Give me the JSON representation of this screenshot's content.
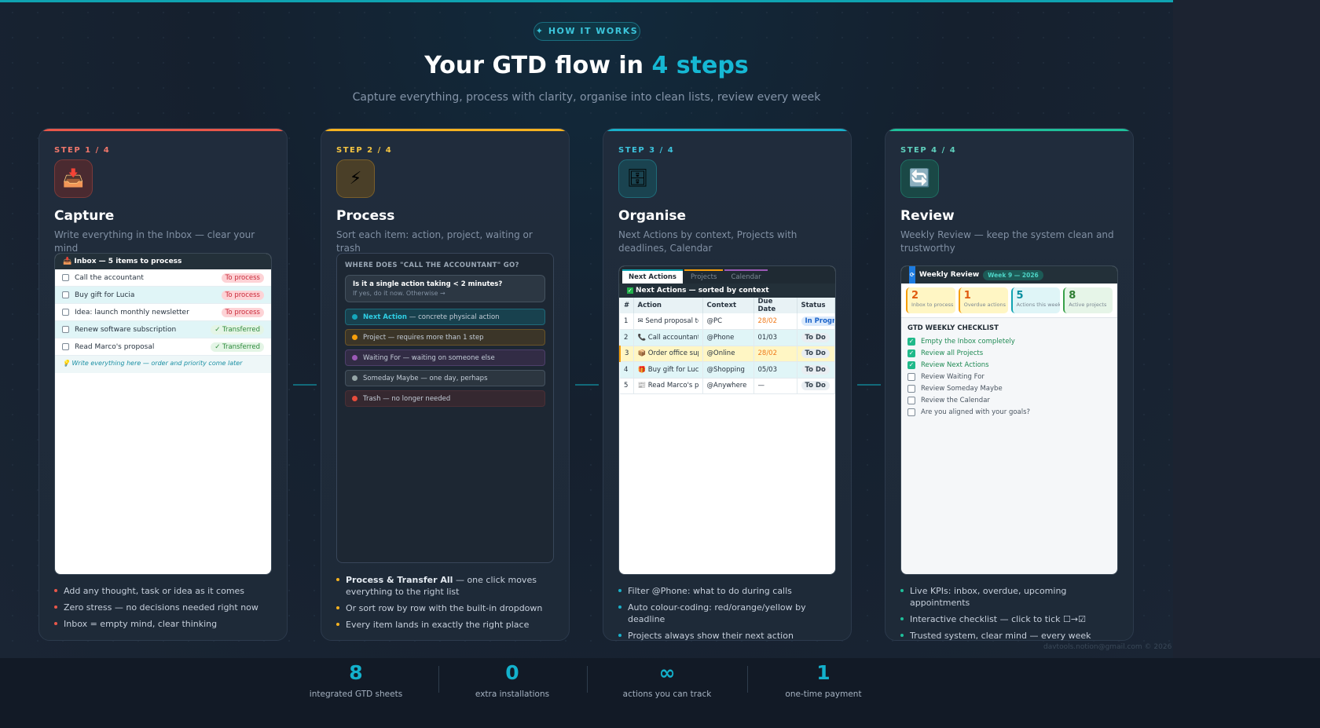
{
  "header": {
    "pill": "✦ HOW IT WORKS",
    "title_a": "Your GTD flow in ",
    "title_b": "4 steps",
    "subtitle": "Capture everything, process with clarity, organise into clean lists, review every week"
  },
  "colors": {
    "capture": "#e8574a",
    "process": "#f5b220",
    "organise": "#19b0c9",
    "review": "#1fbf9a"
  },
  "steps": [
    {
      "label": "STEP 1 / 4",
      "icon": "inbox-tray-icon",
      "title": "Capture",
      "desc": "Write everything in the Inbox — clear your mind",
      "mock": {
        "header": "Inbox — 5 items to process",
        "rows": [
          {
            "text": "Call the accountant",
            "badge": "To process"
          },
          {
            "text": "Buy gift for Lucia",
            "badge": "To process"
          },
          {
            "text": "Idea: launch monthly newsletter",
            "badge": "To process"
          },
          {
            "text": "Renew software subscription",
            "badge": "✓ Transferred"
          },
          {
            "text": "Read Marco's proposal",
            "badge": "✓ Transferred"
          }
        ],
        "hint": "💡 Write everything here — order and priority come later"
      },
      "bullets": [
        "Add any thought, task or idea as it comes",
        "Zero stress — no decisions needed right now",
        "Inbox = empty mind, clear thinking"
      ]
    },
    {
      "label": "STEP 2 / 4",
      "icon": "lightning-icon",
      "title": "Process",
      "desc": "Sort each item: action, project, waiting or trash",
      "mock": {
        "heading": "WHERE DOES \"CALL THE ACCOUNTANT\" GO?",
        "question": "Is it a single action taking < 2 minutes?",
        "question_sub": "If yes, do it now. Otherwise →",
        "options": [
          {
            "strong": "Next Action",
            "text": " — concrete physical action",
            "color": "#15a6ba"
          },
          {
            "text": "Project — requires more than 1 step",
            "color": "#f59e0b"
          },
          {
            "text": "Waiting For — waiting on someone else",
            "color": "#9b59b6"
          },
          {
            "text": "Someday Maybe — one day, perhaps",
            "color": "#95a5a6"
          },
          {
            "text": "Trash — no longer needed",
            "color": "#e74c3c"
          }
        ]
      },
      "bullets_rich": {
        "strong": "Process & Transfer All",
        "rest": " — one click moves everything to the right list"
      },
      "bullets": [
        "Or sort row by row with the built-in dropdown",
        "Every item lands in exactly the right place"
      ]
    },
    {
      "label": "STEP 3 / 4",
      "icon": "file-cabinet-icon",
      "title": "Organise",
      "desc": "Next Actions by context, Projects with deadlines, Calendar",
      "mock": {
        "tabs": [
          "Next Actions",
          "Projects",
          "Calendar"
        ],
        "header": "Next Actions — sorted by context",
        "columns": [
          "#",
          "Action",
          "Context",
          "Due Date",
          "Status"
        ],
        "rows": [
          [
            "1",
            "✉ Send proposal to Bianchi",
            "@PC",
            "28/02",
            "In Progress"
          ],
          [
            "2",
            "📞 Call accountant",
            "@Phone",
            "01/03",
            "To Do"
          ],
          [
            "3",
            "📦 Order office supplies",
            "@Online",
            "28/02",
            "To Do"
          ],
          [
            "4",
            "🎁 Buy gift for Lucia",
            "@Shopping",
            "05/03",
            "To Do"
          ],
          [
            "5",
            "📰 Read Marco's proposal",
            "@Anywhere",
            "—",
            "To Do"
          ]
        ]
      },
      "bullets": [
        "Filter @Phone: what to do during calls",
        "Auto colour-coding: red/orange/yellow by deadline",
        "Projects always show their next action"
      ]
    },
    {
      "label": "STEP 4 / 4",
      "icon": "refresh-icon",
      "title": "Review",
      "desc": "Weekly Review — keep the system clean and trustworthy",
      "mock": {
        "header": "Weekly Review",
        "week": "Week 9 — 2026",
        "kpis": [
          {
            "value": "2",
            "label": "Inbox to process"
          },
          {
            "value": "1",
            "label": "Overdue actions"
          },
          {
            "value": "5",
            "label": "Actions this week"
          },
          {
            "value": "8",
            "label": "Active projects"
          }
        ],
        "checklist_title": "GTD WEEKLY CHECKLIST",
        "checklist": [
          {
            "text": "Empty the Inbox completely",
            "done": true
          },
          {
            "text": "Review all Projects",
            "done": true
          },
          {
            "text": "Review Next Actions",
            "done": true
          },
          {
            "text": "Review Waiting For",
            "done": false
          },
          {
            "text": "Review Someday Maybe",
            "done": false
          },
          {
            "text": "Review the Calendar",
            "done": false
          },
          {
            "text": "Are you aligned with your goals?",
            "done": false
          }
        ]
      },
      "bullets": [
        "Live KPIs: inbox, overdue, upcoming appointments",
        "Interactive checklist — click to tick ☐→☑",
        "Trusted system, clear mind — every week"
      ]
    }
  ],
  "stats": [
    {
      "value": "8",
      "label": "integrated GTD sheets"
    },
    {
      "value": "0",
      "label": "extra installations"
    },
    {
      "value": "∞",
      "label": "actions you can track"
    },
    {
      "value": "1",
      "label": "one-time payment"
    }
  ],
  "footer": "davtools.notion@gmail.com © 2026"
}
